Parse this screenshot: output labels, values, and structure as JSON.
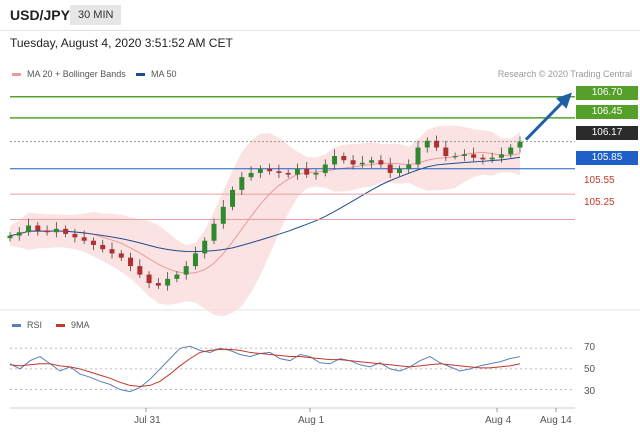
{
  "header": {
    "symbol": "USD/JPY",
    "interval": "30 MIN"
  },
  "timestamp": "Tuesday, August 4, 2020 3:51:52 AM CET",
  "legend": {
    "ma20_label": "MA 20 + Bollinger Bands",
    "ma50_label": "MA 50",
    "ma20_color": "#e99a9a",
    "ma50_color": "#1e4d8c"
  },
  "credit": "Research © 2020 Trading Central",
  "levels": {
    "r2": {
      "label": "106.70",
      "color": "#55a02a"
    },
    "r1": {
      "label": "106.45",
      "color": "#55a02a"
    },
    "last": {
      "label": "106.17",
      "color": "#222222"
    },
    "pivot": {
      "label": "105.85",
      "color": "#1e5fc8"
    },
    "s1": {
      "label": "105.55",
      "color": "#c0392b"
    },
    "s2": {
      "label": "105.25",
      "color": "#c0392b"
    }
  },
  "rsi_legend": {
    "rsi_label": "RSI",
    "ma_label": "9MA",
    "rsi_color": "#5b7fb5",
    "ma_color": "#c0392b"
  },
  "rsi_ticks": [
    "70",
    "50",
    "30"
  ],
  "x_ticks": [
    "Jul 31",
    "Aug 1",
    "Aug 4",
    "Aug 14"
  ],
  "chart_data": [
    {
      "type": "candlestick",
      "title": "USD/JPY 30 MIN",
      "y_ticks": [
        "106.70",
        "106.45",
        "106.17",
        "105.85",
        "105.55",
        "105.25"
      ],
      "close_series": [
        105.06,
        105.1,
        105.18,
        105.12,
        105.1,
        105.14,
        105.08,
        105.04,
        105.0,
        104.95,
        104.9,
        104.85,
        104.8,
        104.7,
        104.6,
        104.5,
        104.47,
        104.55,
        104.6,
        104.7,
        104.85,
        105.0,
        105.2,
        105.4,
        105.6,
        105.75,
        105.8,
        105.85,
        105.82,
        105.8,
        105.78,
        105.85,
        105.78,
        105.8,
        105.9,
        106.0,
        105.95,
        105.9,
        105.92,
        105.95,
        105.9,
        105.8,
        105.85,
        105.9,
        106.1,
        106.18,
        106.1,
        106.0,
        106.0,
        106.02,
        105.98,
        105.96,
        105.98,
        106.02,
        106.1,
        106.17
      ],
      "levels": [
        106.7,
        106.45,
        106.17,
        105.85,
        105.55,
        105.25
      ],
      "ylim": [
        104.3,
        106.85
      ],
      "indicators": [
        "MA 20 + Bollinger Bands",
        "MA 50"
      ],
      "projection": {
        "from": 106.17,
        "to": 106.7
      }
    },
    {
      "type": "line",
      "title": "RSI",
      "series": [
        {
          "name": "RSI",
          "values": [
            55,
            50,
            58,
            62,
            55,
            48,
            52,
            45,
            42,
            38,
            35,
            30,
            28,
            32,
            40,
            50,
            60,
            70,
            72,
            68,
            66,
            70,
            68,
            64,
            62,
            65,
            66,
            60,
            58,
            64,
            62,
            56,
            55,
            60,
            58,
            54,
            52,
            56,
            50,
            48,
            52,
            58,
            62,
            56,
            52,
            48,
            50,
            53,
            55,
            57,
            60,
            62
          ]
        },
        {
          "name": "9MA",
          "values": [
            54,
            53,
            54,
            55,
            55,
            53,
            52,
            50,
            47,
            44,
            41,
            37,
            34,
            33,
            34,
            38,
            45,
            53,
            60,
            66,
            68,
            69,
            69,
            68,
            66,
            65,
            64,
            63,
            62,
            62,
            61,
            60,
            59,
            59,
            58,
            57,
            56,
            55,
            54,
            53,
            52,
            53,
            54,
            55,
            54,
            53,
            52,
            51,
            51,
            52,
            53,
            55
          ]
        }
      ],
      "ylim": [
        15,
        80
      ],
      "grid_values": [
        70,
        50,
        30
      ]
    }
  ]
}
